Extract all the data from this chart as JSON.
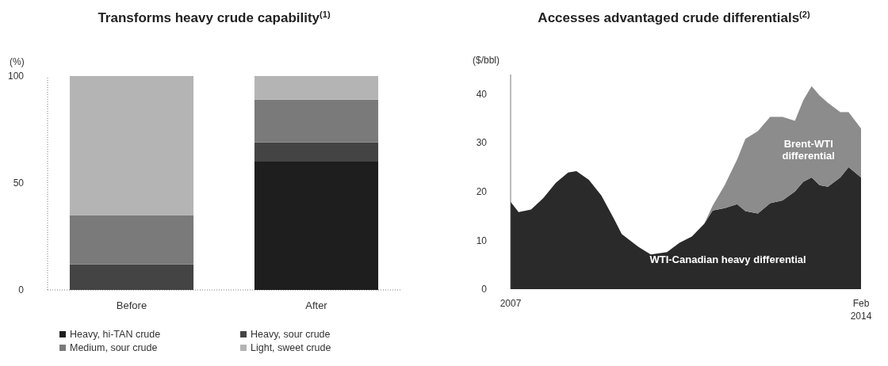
{
  "chart_data": [
    {
      "type": "bar",
      "title": "Transforms heavy crude capability$^{(1)}$",
      "ylabel": "(%)",
      "categories": [
        "Before",
        "After"
      ],
      "stacked": true,
      "ylim": [
        0,
        100
      ],
      "yticks": [
        0,
        50,
        100
      ],
      "grid": false,
      "legend": "bottom",
      "series": [
        {
          "name": "Heavy, hi-TAN crude",
          "color": "#1e1e1e",
          "values": [
            0,
            60
          ]
        },
        {
          "name": "Heavy, sour crude",
          "color": "#444444",
          "values": [
            12,
            9
          ]
        },
        {
          "name": "Medium, sour crude",
          "color": "#7a7a7a",
          "values": [
            23,
            20
          ]
        },
        {
          "name": "Light, sweet crude",
          "color": "#b4b4b4",
          "values": [
            65,
            11
          ]
        }
      ]
    },
    {
      "type": "area",
      "title": "Accesses advantaged crude differentials$^{(2)}$",
      "ylabel": "($/bbl)",
      "stacked": true,
      "ylim": [
        0,
        44
      ],
      "yticks": [
        0,
        10,
        20,
        30,
        40
      ],
      "xlim": [
        "2007-01",
        "2014-02"
      ],
      "xticks": [
        {
          "value": "2007-01",
          "label": "2007"
        },
        {
          "value": "2014-02",
          "label": "Feb 2014"
        }
      ],
      "grid": false,
      "x": [
        "2007-01",
        "2007-03",
        "2007-06",
        "2007-09",
        "2007-12",
        "2008-03",
        "2008-05",
        "2008-08",
        "2008-11",
        "2009-02",
        "2009-04",
        "2009-08",
        "2009-11",
        "2010-03",
        "2010-06",
        "2010-09",
        "2010-12",
        "2011-02",
        "2011-05",
        "2011-08",
        "2011-10",
        "2012-01",
        "2012-04",
        "2012-07",
        "2012-10",
        "2012-12",
        "2013-02",
        "2013-04",
        "2013-06",
        "2013-09",
        "2013-11",
        "2014-02"
      ],
      "series": [
        {
          "name": "WTI-Canadian heavy differential",
          "color": "#2a2a2a",
          "values": [
            17.9,
            15.8,
            16.3,
            18.7,
            21.8,
            23.9,
            24.2,
            22.4,
            19.2,
            14.5,
            11.3,
            8.7,
            7.1,
            7.6,
            9.5,
            10.8,
            13.4,
            16.1,
            16.6,
            17.4,
            16.0,
            15.5,
            17.6,
            18.2,
            20,
            22,
            22.9,
            21.3,
            21,
            22.9,
            25,
            22.9
          ]
        },
        {
          "name": "Brent-WTI differential",
          "color": "#8c8c8c",
          "values": [
            0,
            0,
            0,
            0,
            0,
            0,
            0,
            0,
            0,
            0,
            0,
            0,
            0,
            0,
            0,
            0,
            0,
            1.0,
            4.7,
            9.2,
            14.8,
            16.9,
            17.7,
            17.1,
            14.5,
            16.7,
            18.7,
            18.4,
            17.2,
            13.4,
            11.3,
            10.0
          ]
        }
      ]
    }
  ]
}
